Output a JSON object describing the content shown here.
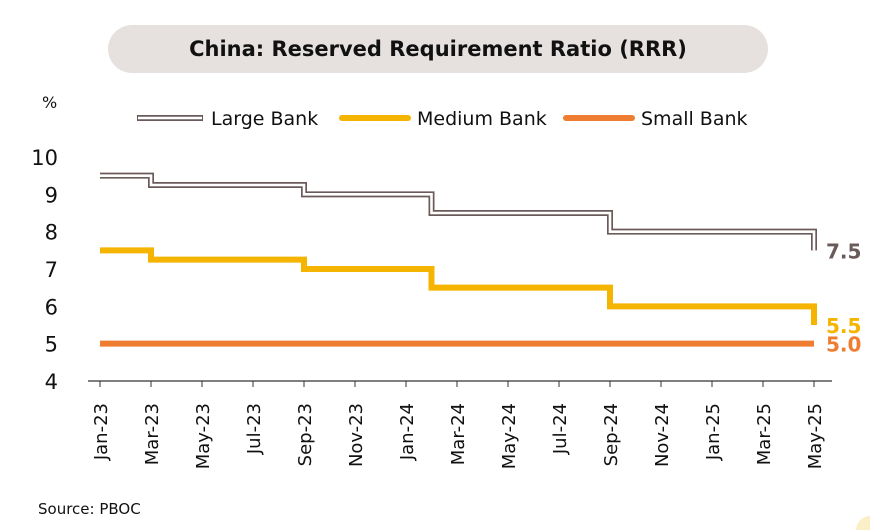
{
  "source": "Source: PBOC",
  "chart_data": {
    "type": "line",
    "step": true,
    "title": "China: Reserved Requirement Ratio (RRR)",
    "ylabel": "%",
    "ylim": [
      4,
      10
    ],
    "yticks": [
      "4",
      "5",
      "6",
      "7",
      "8",
      "9",
      "10"
    ],
    "categories": [
      "Jan-23",
      "Mar-23",
      "May-23",
      "Jul-23",
      "Sep-23",
      "Nov-23",
      "Jan-24",
      "Mar-24",
      "May-24",
      "Jul-24",
      "Sep-24",
      "Nov-24",
      "Jan-25",
      "Mar-25",
      "May-25"
    ],
    "legend_position": "top",
    "grid": false,
    "series": [
      {
        "name": "Large Bank",
        "style": "double-outline",
        "color": "#6b5a5a",
        "end_label": "7.5",
        "points": [
          [
            "Jan-23",
            9.5
          ],
          [
            "Mar-23",
            9.25
          ],
          [
            "Sep-23",
            9.0
          ],
          [
            "Feb-24",
            8.5
          ],
          [
            "Sep-24",
            8.0
          ],
          [
            "May-25",
            7.5
          ]
        ]
      },
      {
        "name": "Medium Bank",
        "style": "solid",
        "color": "#f5b400",
        "end_label": "5.5",
        "points": [
          [
            "Jan-23",
            7.5
          ],
          [
            "Mar-23",
            7.25
          ],
          [
            "Sep-23",
            7.0
          ],
          [
            "Feb-24",
            6.5
          ],
          [
            "Sep-24",
            6.0
          ],
          [
            "May-25",
            5.5
          ]
        ]
      },
      {
        "name": "Small Bank",
        "style": "solid",
        "color": "#ee7d31",
        "end_label": "5.0",
        "points": [
          [
            "Jan-23",
            5.0
          ],
          [
            "May-25",
            5.0
          ]
        ]
      }
    ]
  }
}
